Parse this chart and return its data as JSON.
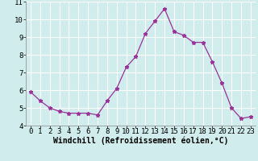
{
  "x": [
    0,
    1,
    2,
    3,
    4,
    5,
    6,
    7,
    8,
    9,
    10,
    11,
    12,
    13,
    14,
    15,
    16,
    17,
    18,
    19,
    20,
    21,
    22,
    23
  ],
  "y": [
    5.9,
    5.4,
    5.0,
    4.8,
    4.7,
    4.7,
    4.7,
    4.6,
    5.4,
    6.1,
    7.3,
    7.9,
    9.2,
    9.9,
    10.6,
    9.3,
    9.1,
    8.7,
    8.7,
    7.6,
    6.4,
    5.0,
    4.4,
    4.5
  ],
  "line_color": "#993399",
  "marker": "*",
  "bg_color": "#d0ecec",
  "grid_color": "#b8d8d8",
  "xlabel": "Windchill (Refroidissement éolien,°C)",
  "xlabel_fontsize": 7,
  "tick_label_fontsize": 6.5,
  "ylim": [
    4,
    11
  ],
  "xlim": [
    -0.5,
    23.5
  ],
  "yticks": [
    4,
    5,
    6,
    7,
    8,
    9,
    10,
    11
  ],
  "xticks": [
    0,
    1,
    2,
    3,
    4,
    5,
    6,
    7,
    8,
    9,
    10,
    11,
    12,
    13,
    14,
    15,
    16,
    17,
    18,
    19,
    20,
    21,
    22,
    23
  ]
}
